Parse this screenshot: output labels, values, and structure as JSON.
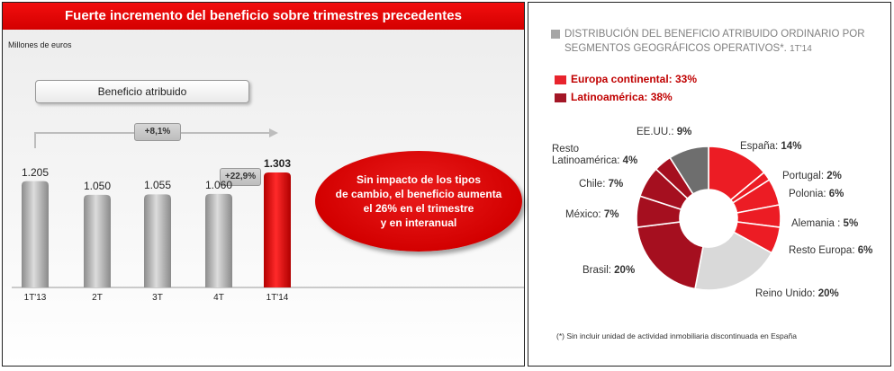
{
  "left": {
    "title": "Fuerte incremento del beneficio sobre trimestres precedentes",
    "units": "Millones de euros",
    "series_label": "Beneficio atribuido",
    "growth_year": "+8,1%",
    "growth_quarter": "+22,9%",
    "callout_lines": [
      "Sin impacto de los tipos",
      "de cambio, el beneficio aumenta",
      "el 26% en el trimestre",
      "y en interanual"
    ],
    "colors": {
      "bar_gray": "#a9a9a9",
      "bar_red": "#e00000",
      "title_red": "#e10000"
    }
  },
  "chart_data": [
    {
      "type": "bar",
      "title": "Beneficio atribuido",
      "ylabel": "Millones de euros",
      "categories": [
        "1T'13",
        "2T",
        "3T",
        "4T",
        "1T'14"
      ],
      "values": [
        1205,
        1050,
        1055,
        1060,
        1303
      ],
      "value_labels": [
        "1.205",
        "1.050",
        "1.055",
        "1.060",
        "1.303"
      ],
      "ylim": [
        0,
        1400
      ],
      "highlight_index": 4
    },
    {
      "type": "pie",
      "title": "DISTRIBUCIÓN DEL BENEFICIO ATRIBUIDO ORDINARIO POR SEGMENTOS GEOGRÁFICOS OPERATIVOS*.",
      "subtitle": "1T'14",
      "legend": [
        {
          "label": "Europa continental: 33%",
          "color": "#e8242d"
        },
        {
          "label": "Latinoamérica: 38%",
          "color": "#a31626"
        }
      ],
      "slices": [
        {
          "name": "España",
          "value": 14,
          "color": "#ec1c24"
        },
        {
          "name": "Portugal",
          "value": 2,
          "color": "#ec1c24"
        },
        {
          "name": "Polonia",
          "value": 6,
          "color": "#ec1c24"
        },
        {
          "name": "Alemania ",
          "value": 5,
          "color": "#ec1c24"
        },
        {
          "name": "Resto Europa",
          "value": 6,
          "color": "#ec1c24"
        },
        {
          "name": "Reino Unido",
          "value": 20,
          "color": "#d9d9d9"
        },
        {
          "name": "Brasil",
          "value": 20,
          "color": "#a50f1f"
        },
        {
          "name": "México",
          "value": 7,
          "color": "#a50f1f"
        },
        {
          "name": "Chile",
          "value": 7,
          "color": "#a50f1f"
        },
        {
          "name": "Resto Latinoamérica",
          "value": 4,
          "color": "#a50f1f"
        },
        {
          "name": "EE.UU.",
          "value": 9,
          "color": "#6e6e6e"
        }
      ],
      "labels": [
        {
          "text": "España:",
          "pct": "14%"
        },
        {
          "text": "Portugal:",
          "pct": "2%"
        },
        {
          "text": "Polonia:",
          "pct": "6%"
        },
        {
          "text": "Alemania :",
          "pct": "5%"
        },
        {
          "text": "Resto Europa:",
          "pct": "6%"
        },
        {
          "text": "Reino Unido:",
          "pct": "20%"
        },
        {
          "text": "Brasil:",
          "pct": "20%"
        },
        {
          "text": "México:",
          "pct": "7%"
        },
        {
          "text": "Chile:",
          "pct": "7%"
        },
        {
          "text": "Resto",
          "text2": "Latinoamérica:",
          "pct": "4%"
        },
        {
          "text": "EE.UU.:",
          "pct": "9%"
        }
      ],
      "footnote": "(*) Sin incluir unidad de actividad inmobiliaria discontinuada en España"
    }
  ]
}
